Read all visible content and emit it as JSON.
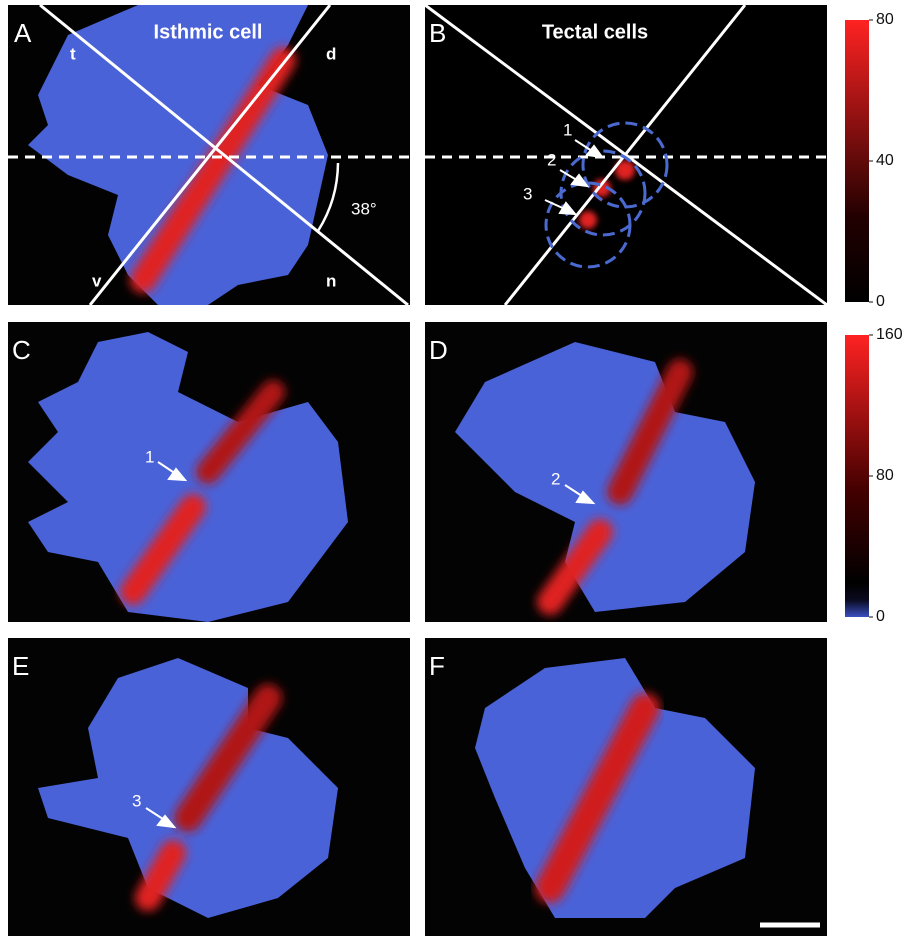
{
  "panels": [
    {
      "letter": "A",
      "title": "Isthmic cell",
      "orientation": [
        "t",
        "d",
        "v",
        "n"
      ],
      "angle_label": "38°"
    },
    {
      "letter": "B",
      "title": "Tectal cells",
      "arrows": [
        "1",
        "2",
        "3"
      ]
    },
    {
      "letter": "C",
      "arrow": "1"
    },
    {
      "letter": "D",
      "arrow": "2"
    },
    {
      "letter": "E",
      "arrow": "3"
    },
    {
      "letter": "F"
    }
  ],
  "colorbars": [
    {
      "lim": [
        0,
        80
      ],
      "ticks": [
        0,
        40,
        80
      ]
    },
    {
      "lim": [
        0,
        160
      ],
      "ticks": [
        0,
        80,
        160
      ]
    }
  ]
}
